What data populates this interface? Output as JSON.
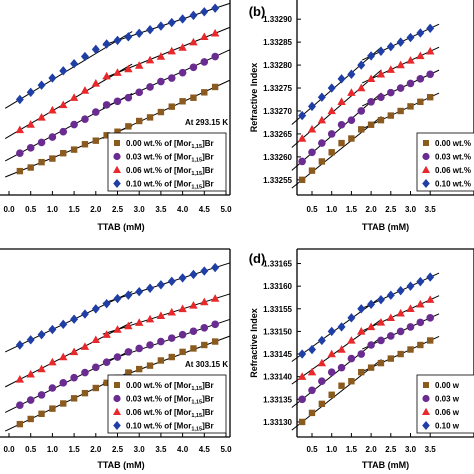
{
  "chart_data": [
    {
      "type": "scatter",
      "panel_label": "",
      "temperature_label": "At 293.15 K",
      "xlabel": "TTAB (mM)",
      "ylabel": "",
      "x_ticks": [
        "0.0",
        "0.5",
        "1.0",
        "1.5",
        "2.0",
        "2.5",
        "3.0",
        "3.5",
        "4.0",
        "4.5",
        "5.0"
      ],
      "y_ticks": [],
      "xlim": [
        0,
        5.0
      ],
      "ylim": [
        0,
        1
      ],
      "x": [
        0.25,
        0.5,
        0.75,
        1.0,
        1.25,
        1.5,
        1.75,
        2.0,
        2.25,
        2.5,
        2.75,
        3.0,
        3.25,
        3.5,
        3.75,
        4.0,
        4.25,
        4.5,
        4.75
      ],
      "legend": [
        {
          "sub": "1,15",
          "pre": "0.00 wt.% of [Mor",
          "post": "]Br"
        },
        {
          "sub": "1,15",
          "pre": "0.03 wt.% of [Mor",
          "post": "]Br"
        },
        {
          "sub": "1,15",
          "pre": "0.06 wt.% of [Mor",
          "post": "]Br"
        },
        {
          "sub": "1,15",
          "pre": "0.10 wt.% of [Mor",
          "post": "]Br"
        }
      ],
      "series": [
        {
          "marker": "square",
          "values": [
            0.1,
            0.12,
            0.15,
            0.17,
            0.2,
            0.22,
            0.25,
            0.27,
            0.3,
            0.32,
            0.35,
            0.38,
            0.4,
            0.43,
            0.46,
            0.49,
            0.51,
            0.54,
            0.57
          ]
        },
        {
          "marker": "circle",
          "values": [
            0.2,
            0.23,
            0.26,
            0.29,
            0.32,
            0.36,
            0.39,
            0.43,
            0.47,
            0.49,
            0.51,
            0.54,
            0.57,
            0.6,
            0.62,
            0.65,
            0.68,
            0.71,
            0.74
          ]
        },
        {
          "marker": "triangle",
          "values": [
            0.33,
            0.36,
            0.4,
            0.44,
            0.47,
            0.51,
            0.55,
            0.59,
            0.63,
            0.65,
            0.67,
            0.69,
            0.72,
            0.74,
            0.77,
            0.79,
            0.82,
            0.85,
            0.87
          ]
        },
        {
          "marker": "diamond",
          "values": [
            0.5,
            0.54,
            0.58,
            0.62,
            0.66,
            0.7,
            0.74,
            0.78,
            0.81,
            0.83,
            0.85,
            0.87,
            0.89,
            0.91,
            0.93,
            0.95,
            0.97,
            0.99,
            1.01
          ]
        }
      ]
    },
    {
      "type": "scatter",
      "panel_label": "(b)",
      "temperature_label": "",
      "xlabel": "TTAB (mM)",
      "ylabel": "Refractive Index",
      "x_ticks": [
        "0.5",
        "1.0",
        "1.5",
        "2.0",
        "2.5",
        "3.0",
        "3.5"
      ],
      "y_ticks": [
        "1.33255",
        "1.33260",
        "1.33265",
        "1.33270",
        "1.33275",
        "1.33280",
        "1.33285",
        "1.33290"
      ],
      "xlim": [
        0,
        3.6
      ],
      "ylim": [
        1.33253,
        1.33292
      ],
      "x": [
        0.25,
        0.5,
        0.75,
        1.0,
        1.25,
        1.5,
        1.75,
        2.0,
        2.25,
        2.5,
        2.75,
        3.0,
        3.25,
        3.5
      ],
      "legend": [
        {
          "sub": "",
          "pre": "0.00 wt.%",
          "post": ""
        },
        {
          "sub": "",
          "pre": "0.03 wt.%",
          "post": ""
        },
        {
          "sub": "",
          "pre": "0.06 wt.%",
          "post": ""
        },
        {
          "sub": "",
          "pre": "0.10 wt.%",
          "post": ""
        }
      ],
      "series": [
        {
          "marker": "square",
          "values": [
            1.33255,
            1.33257,
            1.33259,
            1.33261,
            1.33263,
            1.33264,
            1.33266,
            1.33267,
            1.33268,
            1.33269,
            1.3327,
            1.33271,
            1.33272,
            1.33273
          ]
        },
        {
          "marker": "circle",
          "values": [
            1.33259,
            1.33261,
            1.33263,
            1.33265,
            1.33267,
            1.33268,
            1.3327,
            1.33272,
            1.33273,
            1.33274,
            1.33275,
            1.33276,
            1.33277,
            1.33278
          ]
        },
        {
          "marker": "triangle",
          "values": [
            1.33264,
            1.33266,
            1.33268,
            1.3327,
            1.33272,
            1.33274,
            1.33275,
            1.33277,
            1.33278,
            1.33279,
            1.3328,
            1.33281,
            1.33282,
            1.33283
          ]
        },
        {
          "marker": "diamond",
          "values": [
            1.33269,
            1.33271,
            1.33273,
            1.33275,
            1.33277,
            1.33278,
            1.3328,
            1.33282,
            1.33283,
            1.33284,
            1.33285,
            1.33286,
            1.33287,
            1.33288
          ]
        }
      ]
    },
    {
      "type": "scatter",
      "panel_label": "",
      "temperature_label": "At 303.15 K",
      "xlabel": "TTAB (mM)",
      "ylabel": "",
      "x_ticks": [
        "0.0",
        "0.5",
        "1.0",
        "1.5",
        "2.0",
        "2.5",
        "3.0",
        "3.5",
        "4.0",
        "4.5",
        "5.0"
      ],
      "y_ticks": [],
      "xlim": [
        0,
        5.0
      ],
      "ylim": [
        0,
        1
      ],
      "x": [
        0.25,
        0.5,
        0.75,
        1.0,
        1.25,
        1.5,
        1.75,
        2.0,
        2.25,
        2.5,
        2.75,
        3.0,
        3.25,
        3.5,
        3.75,
        4.0,
        4.25,
        4.5,
        4.75
      ],
      "legend": [
        {
          "sub": "1,15",
          "pre": "0.00 wt.% of [Mor",
          "post": "]Br"
        },
        {
          "sub": "1,15",
          "pre": "0.03 wt.% of [Mor",
          "post": "]Br"
        },
        {
          "sub": "1,15",
          "pre": "0.06 wt.% of [Mor",
          "post": "]Br"
        },
        {
          "sub": "1,15",
          "pre": "0.10 wt.% of [Mor",
          "post": "]Br"
        }
      ],
      "series": [
        {
          "marker": "square",
          "values": [
            0.04,
            0.07,
            0.1,
            0.13,
            0.16,
            0.19,
            0.22,
            0.25,
            0.28,
            0.31,
            0.34,
            0.36,
            0.38,
            0.41,
            0.43,
            0.46,
            0.48,
            0.5,
            0.52
          ]
        },
        {
          "marker": "circle",
          "values": [
            0.15,
            0.18,
            0.21,
            0.25,
            0.28,
            0.31,
            0.34,
            0.37,
            0.4,
            0.43,
            0.46,
            0.48,
            0.5,
            0.52,
            0.54,
            0.56,
            0.58,
            0.6,
            0.62
          ]
        },
        {
          "marker": "triangle",
          "values": [
            0.3,
            0.33,
            0.36,
            0.4,
            0.43,
            0.46,
            0.49,
            0.53,
            0.56,
            0.59,
            0.61,
            0.63,
            0.65,
            0.67,
            0.69,
            0.71,
            0.73,
            0.75,
            0.77
          ]
        },
        {
          "marker": "diamond",
          "values": [
            0.5,
            0.53,
            0.56,
            0.59,
            0.62,
            0.65,
            0.68,
            0.71,
            0.74,
            0.77,
            0.79,
            0.81,
            0.83,
            0.85,
            0.87,
            0.89,
            0.91,
            0.93,
            0.95
          ]
        }
      ]
    },
    {
      "type": "scatter",
      "panel_label": "(d)",
      "temperature_label": "",
      "xlabel": "TTAB (mM)",
      "ylabel": "Refractive Index",
      "x_ticks": [
        "0.5",
        "1.0",
        "1.5",
        "2.0",
        "2.5",
        "3.0",
        "3.5"
      ],
      "y_ticks": [
        "1.33130",
        "1.33135",
        "1.33140",
        "1.33145",
        "1.33150",
        "1.33155",
        "1.33160",
        "1.33165"
      ],
      "xlim": [
        0,
        3.6
      ],
      "ylim": [
        1.33128,
        1.33166
      ],
      "x": [
        0.25,
        0.5,
        0.75,
        1.0,
        1.25,
        1.5,
        1.75,
        2.0,
        2.25,
        2.5,
        2.75,
        3.0,
        3.25,
        3.5
      ],
      "legend": [
        {
          "sub": "",
          "pre": "0.00 w",
          "post": ""
        },
        {
          "sub": "",
          "pre": "0.03 w",
          "post": ""
        },
        {
          "sub": "",
          "pre": "0.06 w",
          "post": ""
        },
        {
          "sub": "",
          "pre": "0.10 w",
          "post": ""
        }
      ],
      "series": [
        {
          "marker": "square",
          "values": [
            1.3313,
            1.33132,
            1.33134,
            1.33136,
            1.33138,
            1.33139,
            1.33141,
            1.33142,
            1.33143,
            1.33144,
            1.33145,
            1.33146,
            1.33147,
            1.33148
          ]
        },
        {
          "marker": "circle",
          "values": [
            1.33135,
            1.33137,
            1.33139,
            1.33141,
            1.33142,
            1.33144,
            1.33145,
            1.33147,
            1.33148,
            1.33149,
            1.3315,
            1.33151,
            1.33152,
            1.33153
          ]
        },
        {
          "marker": "triangle",
          "values": [
            1.3314,
            1.33141,
            1.33143,
            1.33145,
            1.33146,
            1.33148,
            1.3315,
            1.33151,
            1.33152,
            1.33153,
            1.33154,
            1.33155,
            1.33156,
            1.33157
          ]
        },
        {
          "marker": "diamond",
          "values": [
            1.33145,
            1.33146,
            1.33148,
            1.3315,
            1.33151,
            1.33153,
            1.33155,
            1.33156,
            1.33157,
            1.33158,
            1.33159,
            1.3316,
            1.33161,
            1.33162
          ]
        }
      ]
    }
  ],
  "colors": {
    "square": "#8B5A1E",
    "circle": "#6B2C91",
    "triangle": "#E8282B",
    "diamond": "#1F3FA6",
    "fit_line": "#000000"
  }
}
